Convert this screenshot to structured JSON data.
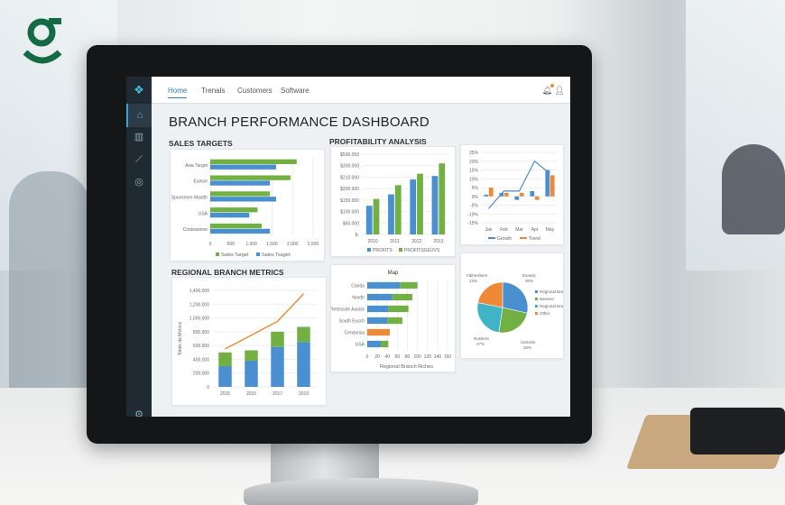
{
  "brand": {
    "logo": "g"
  },
  "nav": {
    "tabs": [
      {
        "label": "Home",
        "active": true
      },
      {
        "label": "Trenals"
      },
      {
        "label": "Customers"
      },
      {
        "label": "Software"
      }
    ],
    "icons": [
      "bell-icon",
      "user-icon"
    ],
    "notification_color": "#f08c2a"
  },
  "sidebar": {
    "items": [
      "home-icon",
      "buildings-icon",
      "chart-icon",
      "globe-icon"
    ],
    "footer": "settings-icon"
  },
  "dashboard": {
    "title": "BRANCH PERFORMANCE DASHBOARD",
    "sections": {
      "sales": "SALES TARGETS",
      "profit": "PROFITABILITY ANALYSIS",
      "regional": "REGIONAL BRANCH METRICS"
    }
  },
  "colors": {
    "blue": "#4a90d0",
    "green": "#72b043",
    "orange": "#ee8a35",
    "teal": "#3fb4c4"
  },
  "chart_data": [
    {
      "id": "sales",
      "type": "bar",
      "orientation": "horizontal",
      "categories": [
        "Asia Target",
        "Eurkse",
        "Sponsmen Mastth",
        "USA",
        "Costsssione"
      ],
      "series": [
        {
          "name": "Sales Target",
          "color": "#72b043",
          "values": [
            2100,
            1950,
            1450,
            1150,
            1250
          ]
        },
        {
          "name": "Sales Tsaget",
          "color": "#4a90d0",
          "values": [
            1600,
            1450,
            1600,
            950,
            1450
          ]
        }
      ],
      "xlim": [
        0,
        2500
      ],
      "xticks": [
        "0",
        "500",
        "1,000",
        "1,500",
        "2,000",
        "2,500"
      ],
      "legend": "bottom"
    },
    {
      "id": "profit",
      "type": "bar",
      "categories": [
        "2010",
        "2011",
        "2012",
        "2013"
      ],
      "series": [
        {
          "name": "PROFITS",
          "color": "#4a90d0",
          "values": [
            125000,
            175000,
            240000,
            255000
          ]
        },
        {
          "name": "PROFITSGEUVS",
          "color": "#72b043",
          "values": [
            155000,
            215000,
            265000,
            310000
          ]
        }
      ],
      "ylim": [
        0,
        350000
      ],
      "yticks": [
        "$-",
        "$50.000",
        "$100.000",
        "$150.000",
        "$200.000",
        "$210.000",
        "$300.000",
        "$500.050"
      ],
      "legend": "bottom"
    },
    {
      "id": "growth",
      "type": "bar+line",
      "categories": [
        "Jan",
        "Feb",
        "Mar",
        "Apr",
        "May"
      ],
      "series": [
        {
          "name": "Growth",
          "kind": "line",
          "color": "#4a8cc8",
          "values": [
            -7,
            3,
            3,
            20,
            13
          ]
        },
        {
          "name": "Trend",
          "kind": "bar",
          "color": "#ee8a35",
          "values": [
            5,
            2,
            2,
            -2,
            12
          ]
        },
        {
          "name": "",
          "kind": "bar",
          "color": "#4a90d0",
          "values": [
            1,
            2,
            -2,
            3,
            15
          ]
        }
      ],
      "ylim": [
        -15,
        25
      ],
      "yticks": [
        "-15%",
        "-10%",
        "-5%",
        "0%",
        "5%",
        "10%",
        "15%",
        "20%",
        "25%"
      ],
      "legend": "bottom"
    },
    {
      "id": "regional",
      "type": "stacked-bar+line",
      "categories": [
        "2015",
        "2015",
        "2017",
        "2019"
      ],
      "ylabel": "Totals da Metrics",
      "series": [
        {
          "name": "",
          "kind": "bar",
          "color": "#4a90d0",
          "values": [
            300000,
            380000,
            580000,
            650000
          ]
        },
        {
          "name": "",
          "kind": "bar",
          "color": "#72b043",
          "values": [
            200000,
            150000,
            220000,
            220000
          ]
        },
        {
          "name": "",
          "kind": "line",
          "color": "#e8913e",
          "values": [
            550000,
            750000,
            950000,
            1350000
          ]
        }
      ],
      "ylim": [
        0,
        1400000
      ],
      "yticks": [
        "0",
        "200,000",
        "400,000",
        "600,000",
        "800,000",
        "1,000,000",
        "1,200,000",
        "1,400,000"
      ]
    },
    {
      "id": "map",
      "type": "stacked-bar",
      "orientation": "horizontal",
      "title": "Map",
      "xlabel": "Regional Branch Riches",
      "categories": [
        "Canda",
        "Nordh",
        "Retessste Ausiss",
        "South Eusch",
        "Cendsnsa",
        "USA"
      ],
      "series": [
        {
          "color": "#4a90d0",
          "values": [
            65,
            50,
            42,
            40,
            0,
            27
          ]
        },
        {
          "color": "#72b043",
          "values": [
            35,
            40,
            40,
            30,
            0,
            15
          ]
        },
        {
          "color": "#ee8a35",
          "values": [
            0,
            0,
            0,
            0,
            45,
            0
          ]
        }
      ],
      "xlim": [
        0,
        160
      ],
      "xticks": [
        "0",
        "20",
        "40",
        "60",
        "80",
        "100",
        "120",
        "140",
        "160"
      ]
    },
    {
      "id": "pie",
      "type": "pie",
      "slices": [
        {
          "label": "Esasrly",
          "pct_label": "30%",
          "value": 30,
          "color": "#4a90d0"
        },
        {
          "label": "Ustrvsts",
          "pct_label": "25%",
          "value": 25,
          "color": "#72b043"
        },
        {
          "label": "Rosterst",
          "pct_label": "27%",
          "value": 27,
          "color": "#3fb4c4"
        },
        {
          "label": "Fdihesfsers",
          "pct_label": "23%",
          "value": 23,
          "color": "#ee8a35"
        }
      ],
      "legend": [
        {
          "label": "Regional Branch",
          "color": "#4a90d0"
        },
        {
          "label": "Basssst",
          "color": "#72b043"
        },
        {
          "label": "Regional Branch",
          "color": "#3fb4c4"
        },
        {
          "label": "Other",
          "color": "#ee8a35"
        }
      ],
      "legend_position": "right"
    }
  ]
}
